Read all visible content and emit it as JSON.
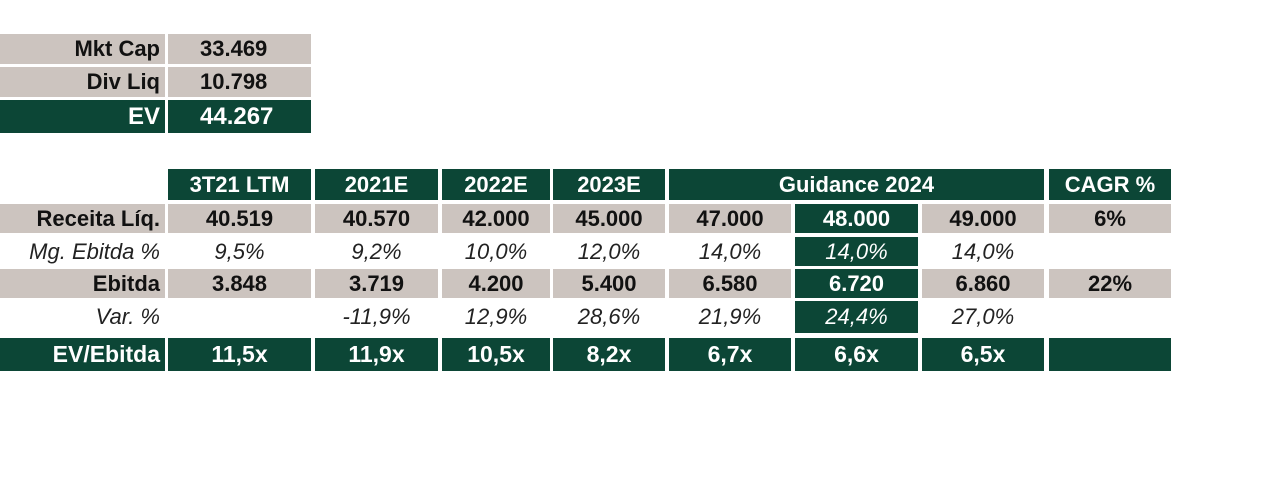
{
  "summary": {
    "rows": [
      {
        "label": "Mkt Cap",
        "value": "33.469"
      },
      {
        "label": "Div Liq",
        "value": "10.798"
      },
      {
        "label": "EV",
        "value": "44.267"
      }
    ]
  },
  "table": {
    "headers": [
      "3T21 LTM",
      "2021E",
      "2022E",
      "2023E"
    ],
    "guidance_header": "Guidance 2024",
    "cagr_header": "CAGR %",
    "rows": [
      {
        "label": "Receita Líq.",
        "values": [
          "40.519",
          "40.570",
          "42.000",
          "45.000",
          "47.000",
          "48.000",
          "49.000"
        ],
        "cagr": "6%"
      },
      {
        "label": "Mg. Ebitda %",
        "values": [
          "9,5%",
          "9,2%",
          "10,0%",
          "12,0%",
          "14,0%",
          "14,0%",
          "14,0%"
        ],
        "cagr": ""
      },
      {
        "label": "Ebitda",
        "values": [
          "3.848",
          "3.719",
          "4.200",
          "5.400",
          "6.580",
          "6.720",
          "6.860"
        ],
        "cagr": "22%"
      },
      {
        "label": "Var. %",
        "values": [
          "",
          "-11,9%",
          "12,9%",
          "28,6%",
          "21,9%",
          "24,4%",
          "27,0%"
        ],
        "cagr": ""
      },
      {
        "label": "EV/Ebitda",
        "values": [
          "11,5x",
          "11,9x",
          "10,5x",
          "8,2x",
          "6,7x",
          "6,6x",
          "6,5x"
        ],
        "cagr": ""
      }
    ]
  },
  "colors": {
    "green": "#0c4636",
    "grey": "#ccc4bf"
  }
}
